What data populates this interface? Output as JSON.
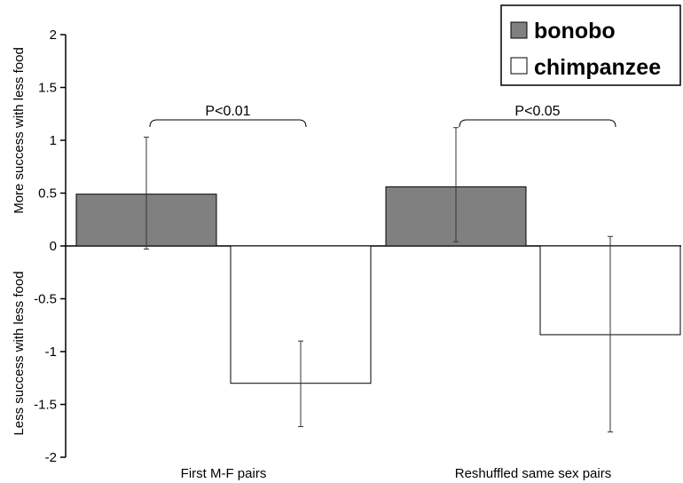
{
  "chart_data": {
    "type": "bar",
    "categories": [
      "First M-F pairs",
      "Reshuffled same sex pairs"
    ],
    "series": [
      {
        "name": "bonobo",
        "values": [
          0.49,
          0.56
        ],
        "error_low": [
          -0.03,
          0.04
        ],
        "error_high": [
          1.03,
          1.12
        ],
        "color": "#808080"
      },
      {
        "name": "chimpanzee",
        "values": [
          -1.3,
          -0.84
        ],
        "error_low": [
          -1.71,
          -1.76
        ],
        "error_high": [
          -0.9,
          0.09
        ],
        "color": "#ffffff"
      }
    ],
    "ylabel_top": "More success with less food",
    "ylabel_bottom": "Less success with less food",
    "ylim": [
      -2,
      2
    ],
    "yticks": [
      "2",
      "1.5",
      "1",
      "0.5",
      "0",
      "-0.5",
      "-1",
      "-1.5",
      "-2"
    ],
    "grid": false,
    "legend": "top-right",
    "annotations": [
      {
        "category": 0,
        "text": "P<0.01"
      },
      {
        "category": 1,
        "text": "P<0.05"
      }
    ]
  }
}
